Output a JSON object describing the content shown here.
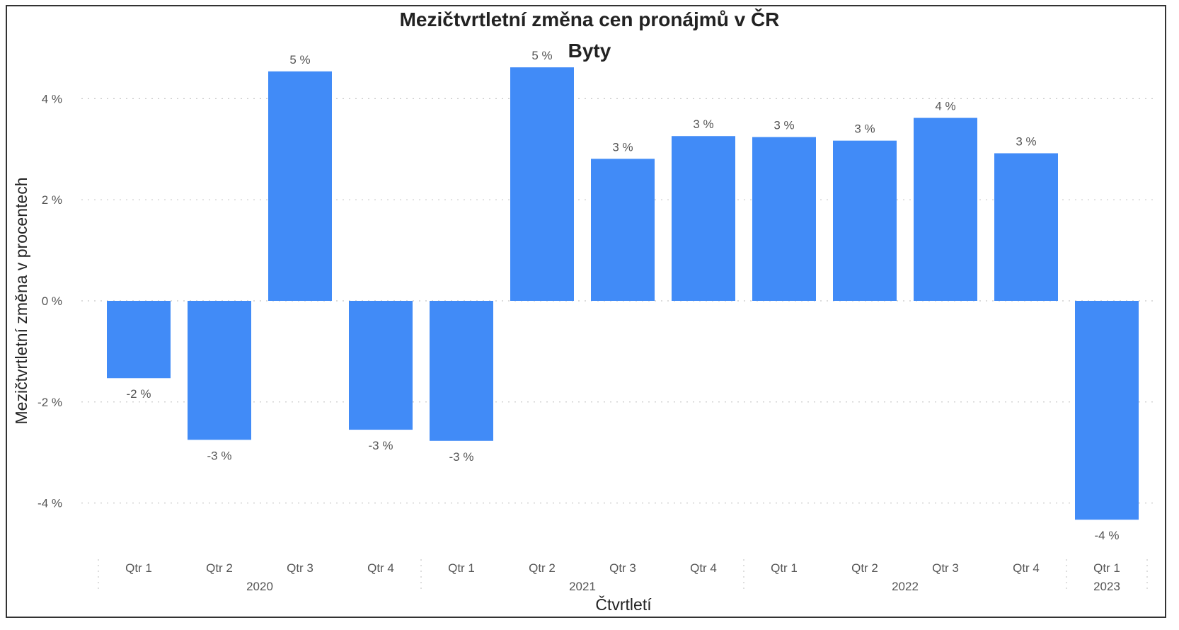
{
  "chart_data": {
    "type": "bar",
    "title": "Mezičtvrtletní změna cen pronájmů v ČR",
    "subtitle": "Byty",
    "xlabel": "Čtvrtletí",
    "ylabel": "Mezičtvrtletní změna v procentech",
    "ylim": [
      -5,
      5
    ],
    "yticks": [
      -4,
      -2,
      0,
      2,
      4
    ],
    "ytick_labels": [
      "-4 %",
      "-2 %",
      "0 %",
      "2 %",
      "4 %"
    ],
    "grid": true,
    "categories": [
      "Qtr 1",
      "Qtr 2",
      "Qtr 3",
      "Qtr 4",
      "Qtr 1",
      "Qtr 2",
      "Qtr 3",
      "Qtr 4",
      "Qtr 1",
      "Qtr 2",
      "Qtr 3",
      "Qtr 4",
      "Qtr 1"
    ],
    "years": [
      {
        "label": "2020",
        "count": 4
      },
      {
        "label": "2021",
        "count": 4
      },
      {
        "label": "2022",
        "count": 4
      },
      {
        "label": "2023",
        "count": 1
      }
    ],
    "values": [
      -1.53,
      -2.75,
      4.54,
      -2.55,
      -2.77,
      4.62,
      2.81,
      3.26,
      3.24,
      3.17,
      3.62,
      2.92,
      -4.33
    ],
    "data_labels": [
      "-2 %",
      "-3 %",
      "5 %",
      "-3 %",
      "-3 %",
      "5 %",
      "3 %",
      "3 %",
      "3 %",
      "3 %",
      "4 %",
      "3 %",
      "-4 %"
    ],
    "bar_color": "#418BF7"
  }
}
